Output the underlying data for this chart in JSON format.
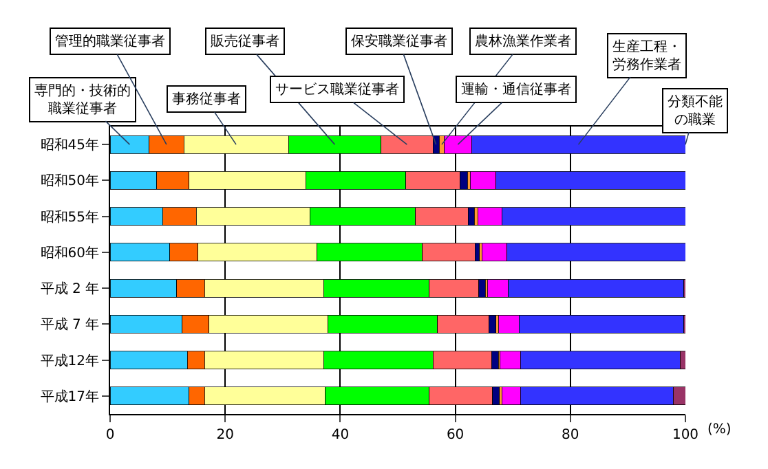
{
  "chart_data": {
    "type": "bar",
    "orientation": "horizontal",
    "stacked": true,
    "categories": [
      "昭和45年",
      "昭和50年",
      "昭和55年",
      "昭和60年",
      "平成 2 年",
      "平成 7 年",
      "平成12年",
      "平成17年"
    ],
    "series": [
      {
        "name": "専門的・技術的職業従事者",
        "color": "#33ccff",
        "values": [
          6.8,
          8.1,
          9.1,
          10.4,
          11.6,
          12.5,
          13.4,
          13.7
        ]
      },
      {
        "name": "管理的職業従事者",
        "color": "#ff6600",
        "values": [
          6.0,
          5.6,
          5.9,
          4.9,
          4.8,
          4.7,
          3.0,
          2.7
        ]
      },
      {
        "name": "事務従事者",
        "color": "#ffff99",
        "values": [
          18.2,
          20.3,
          19.7,
          20.7,
          20.7,
          20.7,
          20.7,
          21.0
        ]
      },
      {
        "name": "販売従事者",
        "color": "#00ff00",
        "values": [
          16.1,
          17.4,
          18.4,
          18.3,
          18.4,
          19.0,
          19.0,
          18.1
        ]
      },
      {
        "name": "サービス職業従事者",
        "color": "#ff6666",
        "values": [
          9.0,
          9.4,
          9.1,
          9.1,
          8.6,
          9.0,
          10.2,
          11.0
        ]
      },
      {
        "name": "保安職業従事者",
        "color": "#000080",
        "values": [
          1.1,
          1.3,
          1.1,
          0.8,
          1.1,
          1.2,
          1.2,
          1.2
        ]
      },
      {
        "name": "農林漁業作業者",
        "color": "#ff9933",
        "values": [
          0.9,
          0.5,
          0.6,
          0.4,
          0.4,
          0.4,
          0.3,
          0.4
        ]
      },
      {
        "name": "運輸・通信従事者",
        "color": "#ff00ff",
        "values": [
          4.7,
          4.5,
          4.2,
          4.4,
          3.6,
          3.6,
          3.5,
          3.2
        ]
      },
      {
        "name": "生産工程・労務作業者",
        "color": "#3333ff",
        "values": [
          37.2,
          32.9,
          31.9,
          31.0,
          30.5,
          28.6,
          27.8,
          26.6
        ]
      },
      {
        "name": "分類不能の職業",
        "color": "#993366",
        "values": [
          0.0,
          0.0,
          0.0,
          0.0,
          0.3,
          0.3,
          0.9,
          2.1
        ]
      }
    ],
    "xlim": [
      0,
      100
    ],
    "xticks": [
      0,
      20,
      40,
      60,
      80,
      100
    ],
    "xlabel": "(%)",
    "grid": "x",
    "legend": false
  }
}
